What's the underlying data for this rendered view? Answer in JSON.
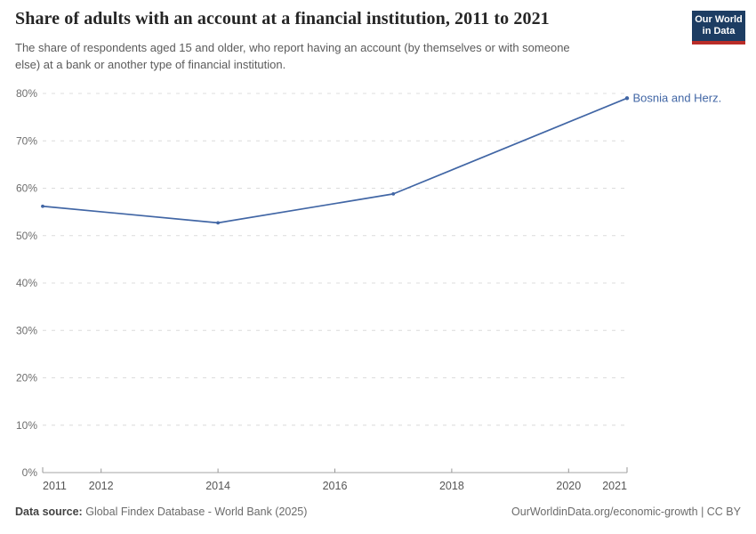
{
  "header": {
    "title": "Share of adults with an account at a financial institution, 2011 to 2021",
    "subtitle": "The share of respondents aged 15 and older, who report having an account (by themselves or with someone else) at a bank or another type of financial institution.",
    "logo": {
      "line1": "Our World",
      "line2": "in Data"
    }
  },
  "chart_data": {
    "type": "line",
    "title": "Share of adults with an account at a financial institution, 2011 to 2021",
    "xlabel": "",
    "ylabel": "",
    "xlim": [
      2011,
      2021
    ],
    "ylim": [
      0,
      80
    ],
    "yticks": [
      0,
      10,
      20,
      30,
      40,
      50,
      60,
      70,
      80
    ],
    "ytick_format": "{v}%",
    "xticks": [
      2011,
      2012,
      2014,
      2016,
      2018,
      2020,
      2021
    ],
    "grid": "horizontal-dashed",
    "legend": "line-end-label",
    "series": [
      {
        "name": "Bosnia and Herz.",
        "x": [
          2011,
          2014,
          2017,
          2021
        ],
        "values": [
          56.2,
          52.7,
          58.8,
          79
        ],
        "color": "#4166a5"
      }
    ]
  },
  "footer": {
    "data_source_label": "Data source:",
    "data_source_value": "Global Findex Database - World Bank (2025)",
    "attribution": "OurWorldinData.org/economic-growth | CC BY"
  },
  "colors": {
    "line": "#4166a5",
    "grid": "#dcdcdc",
    "axis_line": "#a6a6a6",
    "tick": "#979797",
    "y_label": "#6e6e6e",
    "x_label": "#565656",
    "logo_bg": "#1d3d63",
    "logo_accent": "#b92d28"
  }
}
